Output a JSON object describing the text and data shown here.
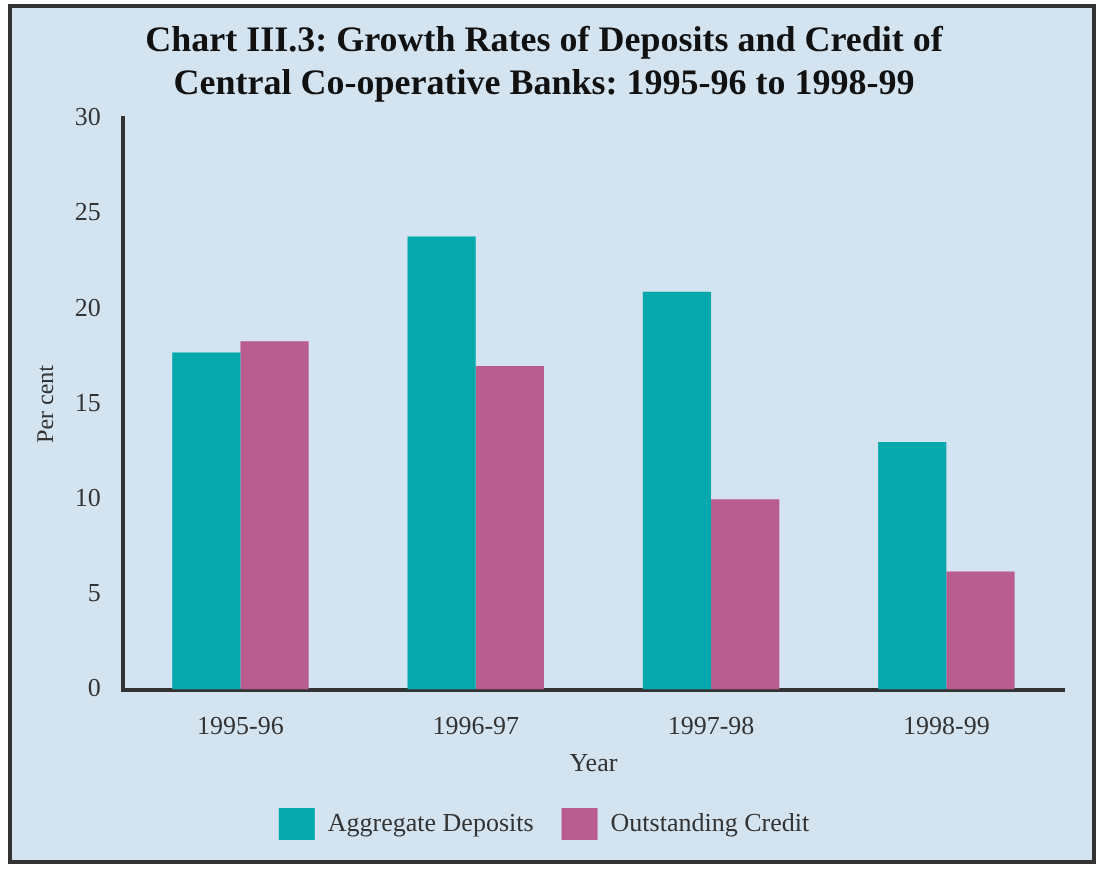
{
  "chart_data": {
    "type": "bar",
    "title": [
      "Chart III.3: Growth Rates of Deposits and Credit of",
      "Central Co-operative Banks: 1995-96 to 1998-99"
    ],
    "xlabel": "Year",
    "ylabel": "Per cent",
    "categories": [
      "1995-96",
      "1996-97",
      "1997-98",
      "1998-99"
    ],
    "series": [
      {
        "name": "Aggregate Deposits",
        "color": "#05a8ad",
        "values": [
          17.7,
          23.8,
          20.9,
          13.0
        ]
      },
      {
        "name": "Outstanding Credit",
        "color": "#b95d8f",
        "values": [
          18.3,
          17.0,
          10.0,
          6.2
        ]
      }
    ],
    "ylim": [
      0,
      30
    ],
    "yticks": [
      0,
      5,
      10,
      15,
      20,
      25,
      30
    ],
    "grid": false,
    "legend": "bottom"
  }
}
